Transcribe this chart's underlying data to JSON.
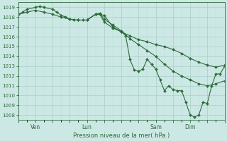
{
  "xlabel": "Pression niveau de la mer( hPa )",
  "ylim": [
    1007.5,
    1019.5
  ],
  "yticks": [
    1008,
    1009,
    1010,
    1011,
    1012,
    1013,
    1014,
    1015,
    1016,
    1017,
    1018,
    1019
  ],
  "bg_color": "#cce8e4",
  "line_color": "#2d6b3c",
  "grid_major_color": "#aacfc8",
  "grid_minor_color": "#c0ddd8",
  "xlim": [
    0,
    96
  ],
  "xtick_positions": [
    8,
    32,
    64,
    80
  ],
  "xtick_labels": [
    "Ven",
    "Lun",
    "Sam",
    "Dim"
  ],
  "line1_x": [
    0,
    2,
    4,
    8,
    10,
    12,
    16,
    18,
    20,
    22,
    24,
    26,
    28,
    30,
    32,
    36,
    40,
    44,
    48,
    52,
    56,
    60,
    64,
    68,
    72,
    76,
    80,
    84,
    88,
    92,
    96
  ],
  "line1_y": [
    1018.3,
    1018.5,
    1018.8,
    1019.0,
    1019.1,
    1019.0,
    1018.8,
    1018.5,
    1018.2,
    1018.0,
    1017.8,
    1017.7,
    1017.7,
    1017.7,
    1017.7,
    1018.3,
    1018.2,
    1017.0,
    1016.5,
    1016.1,
    1015.7,
    1015.5,
    1015.2,
    1015.0,
    1014.7,
    1014.3,
    1013.8,
    1013.4,
    1013.1,
    1012.9,
    1013.1
  ],
  "line2_x": [
    0,
    4,
    8,
    12,
    16,
    20,
    24,
    28,
    32,
    36,
    38,
    40,
    44,
    48,
    52,
    56,
    60,
    64,
    68,
    72,
    76,
    80,
    84,
    88,
    92,
    96
  ],
  "line2_y": [
    1018.3,
    1018.5,
    1018.7,
    1018.5,
    1018.3,
    1018.0,
    1017.8,
    1017.7,
    1017.7,
    1018.3,
    1018.4,
    1017.8,
    1017.2,
    1016.6,
    1015.8,
    1015.2,
    1014.6,
    1014.0,
    1013.2,
    1012.5,
    1012.0,
    1011.6,
    1011.2,
    1011.0,
    1011.2,
    1011.5
  ],
  "line3_x": [
    32,
    36,
    38,
    40,
    44,
    48,
    50,
    52,
    54,
    56,
    58,
    60,
    62,
    64,
    66,
    68,
    70,
    72,
    74,
    76,
    78,
    80,
    82,
    84,
    86,
    88,
    90,
    92,
    94,
    96
  ],
  "line3_y": [
    1017.7,
    1018.3,
    1018.3,
    1017.5,
    1016.9,
    1016.5,
    1016.1,
    1013.7,
    1012.6,
    1012.5,
    1012.7,
    1013.7,
    1013.2,
    1012.7,
    1011.6,
    1010.5,
    1011.0,
    1010.6,
    1010.5,
    1010.5,
    1009.3,
    1008.0,
    1007.8,
    1008.0,
    1009.3,
    1009.2,
    1011.0,
    1012.2,
    1012.2,
    1013.0
  ]
}
